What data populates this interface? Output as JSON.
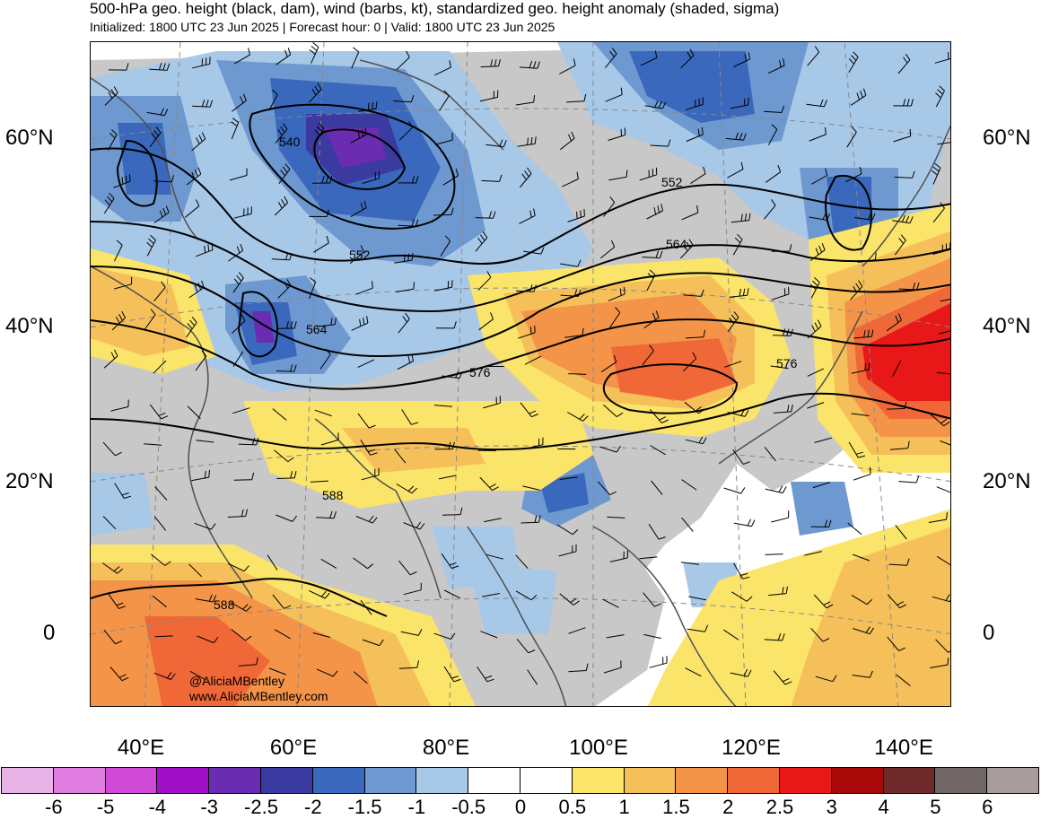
{
  "header": {
    "title": "500-hPa geo. height (black, dam), wind (barbs, kt), standardized geo. height anomaly (shaded, sigma)",
    "subtitle": "Initialized: 1800 UTC 23 Jun 2025 | Forecast hour: 0 | Valid: 1800 UTC 23 Jun 2025"
  },
  "map": {
    "lat_labels_left": [
      "60°N",
      "40°N",
      "20°N",
      "0"
    ],
    "lat_labels_right": [
      "60°N",
      "40°N",
      "20°N",
      "0"
    ],
    "lon_labels": [
      "40°E",
      "60°E",
      "80°E",
      "100°E",
      "120°E",
      "140°E"
    ],
    "contour_labels": [
      "540",
      "552",
      "552",
      "564",
      "564",
      "576",
      "576",
      "588",
      "588"
    ],
    "credit_handle": "@AliciaMBentley",
    "credit_url": "www.AliciaMBentley.com"
  },
  "colorbar": {
    "labels": [
      "-6",
      "-5",
      "-4",
      "-3",
      "-2.5",
      "-2",
      "-1.5",
      "-1",
      "-0.5",
      "0",
      "0.5",
      "1",
      "1.5",
      "2",
      "2.5",
      "3",
      "4",
      "5",
      "6"
    ],
    "colors": [
      "#e8b4e8",
      "#e07be0",
      "#d04ad8",
      "#a010c8",
      "#6a2cb0",
      "#3a3aa0",
      "#3a68bc",
      "#6e98d0",
      "#a8c8e8",
      "#ffffff",
      "#ffffff",
      "#fbe46a",
      "#f5c05a",
      "#f49448",
      "#f06838",
      "#e81818",
      "#a80a0a",
      "#6e2a2a",
      "#706666",
      "#a89c9c"
    ]
  },
  "colors": {
    "land": "#c8c8c8",
    "contour": "#000000",
    "coastline": "#505050"
  }
}
